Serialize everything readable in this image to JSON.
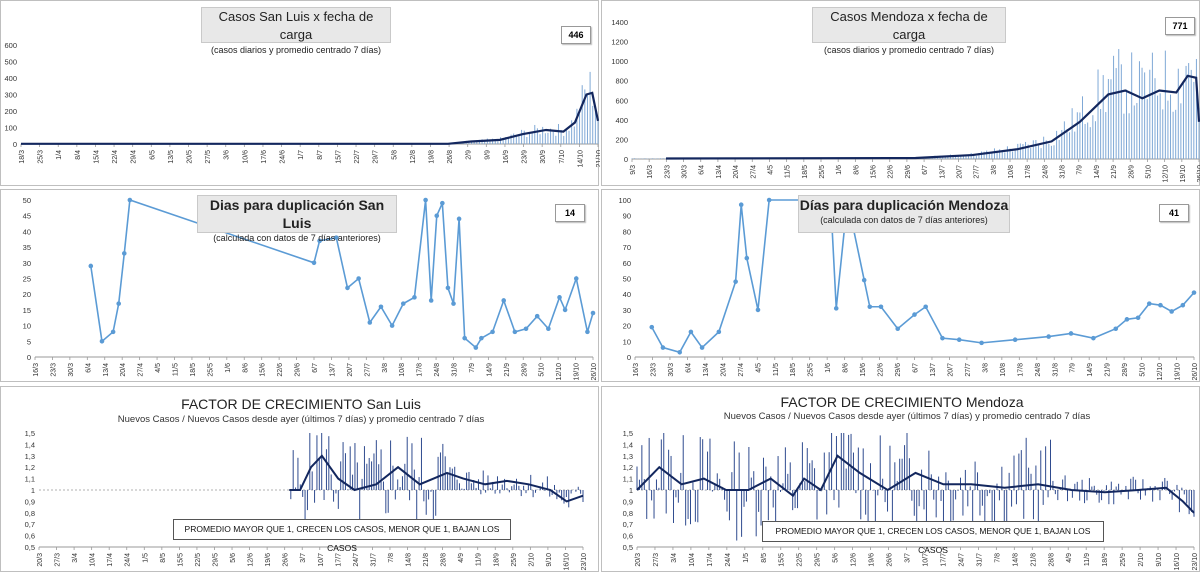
{
  "chart_data": [
    {
      "id": "sl_cases",
      "type": "bar",
      "title": "Casos San Luis x fecha de carga",
      "subtitle": "(casos diarios y promedio  centrado 7 días)",
      "badge": "446",
      "ylim": [
        0,
        600
      ],
      "yticks": [
        "0",
        "100",
        "200",
        "300",
        "400",
        "500",
        "600"
      ],
      "xticks": [
        "18/3",
        "25/3",
        "1/4",
        "8/4",
        "15/4",
        "22/4",
        "29/4",
        "6/5",
        "13/5",
        "20/5",
        "27/5",
        "3/6",
        "10/6",
        "17/6",
        "24/6",
        "1/7",
        "8/7",
        "15/7",
        "22/7",
        "29/7",
        "5/8",
        "12/8",
        "19/8",
        "26/8",
        "2/9",
        "9/9",
        "16/9",
        "23/9",
        "30/9",
        "7/10",
        "14/10",
        "21/10"
      ],
      "bars": [
        [
          0,
          0.14,
          0
        ],
        [
          0.7,
          0.9,
          12
        ],
        [
          0.9,
          0.97,
          60
        ],
        [
          0.97,
          1.0,
          250
        ]
      ],
      "avg": [
        [
          0,
          1
        ],
        [
          0.74,
          1
        ],
        [
          0.78,
          15
        ],
        [
          0.83,
          25
        ],
        [
          0.87,
          60
        ],
        [
          0.91,
          85
        ],
        [
          0.94,
          75
        ],
        [
          0.96,
          130
        ],
        [
          0.98,
          300
        ],
        [
          0.99,
          310
        ],
        [
          1.0,
          140
        ]
      ]
    },
    {
      "id": "mz_cases",
      "type": "bar",
      "title": "Casos Mendoza x fecha de carga",
      "subtitle": "(casos diarios y promedio  centrado 7 días)",
      "badge": "771",
      "ylim": [
        0,
        1400
      ],
      "yticks": [
        "0",
        "200",
        "400",
        "600",
        "800",
        "1000",
        "1200",
        "1400"
      ],
      "xticks": [
        "9/3",
        "16/3",
        "23/3",
        "30/3",
        "6/4",
        "13/4",
        "20/4",
        "27/4",
        "4/5",
        "11/5",
        "18/5",
        "25/5",
        "1/6",
        "8/6",
        "15/6",
        "22/6",
        "29/6",
        "6/7",
        "13/7",
        "20/7",
        "27/7",
        "3/8",
        "10/8",
        "17/8",
        "24/8",
        "31/8",
        "7/9",
        "14/9",
        "21/9",
        "28/9",
        "5/10",
        "12/10",
        "19/10",
        "26/10"
      ],
      "avg": [
        [
          0.06,
          5
        ],
        [
          0.5,
          10
        ],
        [
          0.6,
          40
        ],
        [
          0.68,
          100
        ],
        [
          0.74,
          180
        ],
        [
          0.79,
          380
        ],
        [
          0.84,
          660
        ],
        [
          0.87,
          700
        ],
        [
          0.9,
          620
        ],
        [
          0.93,
          700
        ],
        [
          0.96,
          680
        ],
        [
          0.98,
          850
        ],
        [
          0.995,
          830
        ],
        [
          1.0,
          380
        ]
      ]
    },
    {
      "id": "sl_dup",
      "type": "line",
      "title": "Dias para duplicación San Luis",
      "subtitle": "(calculada con datos de 7 días anteriores)",
      "badge": "14",
      "ylim": [
        0,
        50
      ],
      "yticks": [
        "0",
        "5",
        "10",
        "15",
        "20",
        "25",
        "30",
        "35",
        "40",
        "45",
        "50"
      ],
      "xticks": [
        "16/3",
        "23/3",
        "30/3",
        "6/4",
        "13/4",
        "20/4",
        "27/4",
        "4/5",
        "11/5",
        "18/5",
        "25/5",
        "1/6",
        "8/6",
        "15/6",
        "22/6",
        "29/6",
        "6/7",
        "13/7",
        "20/7",
        "27/7",
        "3/8",
        "10/8",
        "17/8",
        "24/8",
        "31/8",
        "7/9",
        "14/9",
        "21/9",
        "28/9",
        "5/10",
        "12/10",
        "19/10",
        "26/10"
      ],
      "series": [
        [
          0.1,
          29
        ],
        [
          0.12,
          5
        ],
        [
          0.14,
          8
        ],
        [
          0.15,
          17
        ],
        [
          0.16,
          33
        ],
        [
          0.17,
          50
        ],
        [
          0.5,
          30
        ],
        [
          0.51,
          37
        ],
        [
          0.54,
          38
        ],
        [
          0.56,
          22
        ],
        [
          0.58,
          25
        ],
        [
          0.6,
          11
        ],
        [
          0.62,
          16
        ],
        [
          0.64,
          10
        ],
        [
          0.66,
          17
        ],
        [
          0.68,
          19
        ],
        [
          0.7,
          50
        ],
        [
          0.71,
          18
        ],
        [
          0.72,
          45
        ],
        [
          0.73,
          49
        ],
        [
          0.74,
          22
        ],
        [
          0.75,
          17
        ],
        [
          0.76,
          44
        ],
        [
          0.77,
          6
        ],
        [
          0.79,
          3
        ],
        [
          0.8,
          6
        ],
        [
          0.82,
          8
        ],
        [
          0.84,
          18
        ],
        [
          0.86,
          8
        ],
        [
          0.88,
          9
        ],
        [
          0.9,
          13
        ],
        [
          0.92,
          9
        ],
        [
          0.94,
          19
        ],
        [
          0.95,
          15
        ],
        [
          0.97,
          25
        ],
        [
          0.99,
          8
        ],
        [
          1.0,
          14
        ]
      ]
    },
    {
      "id": "mz_dup",
      "type": "line",
      "title": "Días para duplicación Mendoza",
      "subtitle": "(calculada con datos de 7 días anteriores)",
      "badge": "41",
      "ylim": [
        0,
        100
      ],
      "yticks": [
        "0",
        "10",
        "20",
        "30",
        "40",
        "50",
        "60",
        "70",
        "80",
        "90",
        "100"
      ],
      "xticks": [
        "16/3",
        "23/3",
        "30/3",
        "6/4",
        "13/4",
        "20/4",
        "27/4",
        "4/5",
        "11/5",
        "18/5",
        "25/5",
        "1/6",
        "8/6",
        "15/6",
        "22/6",
        "29/6",
        "6/7",
        "13/7",
        "20/7",
        "27/7",
        "3/8",
        "10/8",
        "17/8",
        "24/8",
        "31/8",
        "7/9",
        "14/9",
        "21/9",
        "28/9",
        "5/10",
        "12/10",
        "19/10",
        "26/10"
      ],
      "series": [
        [
          0.03,
          19
        ],
        [
          0.05,
          6
        ],
        [
          0.08,
          3
        ],
        [
          0.1,
          16
        ],
        [
          0.12,
          6
        ],
        [
          0.15,
          16
        ],
        [
          0.18,
          48
        ],
        [
          0.19,
          97
        ],
        [
          0.2,
          63
        ],
        [
          0.22,
          30
        ],
        [
          0.24,
          100
        ],
        [
          0.35,
          100
        ],
        [
          0.36,
          31
        ],
        [
          0.38,
          100
        ],
        [
          0.41,
          49
        ],
        [
          0.42,
          32
        ],
        [
          0.44,
          32
        ],
        [
          0.47,
          18
        ],
        [
          0.5,
          27
        ],
        [
          0.52,
          32
        ],
        [
          0.55,
          12
        ],
        [
          0.58,
          11
        ],
        [
          0.62,
          9
        ],
        [
          0.68,
          11
        ],
        [
          0.74,
          13
        ],
        [
          0.78,
          15
        ],
        [
          0.82,
          12
        ],
        [
          0.86,
          18
        ],
        [
          0.88,
          24
        ],
        [
          0.9,
          25
        ],
        [
          0.92,
          34
        ],
        [
          0.94,
          33
        ],
        [
          0.96,
          29
        ],
        [
          0.98,
          33
        ],
        [
          1.0,
          41
        ]
      ]
    },
    {
      "id": "sl_factor",
      "type": "bar",
      "title": "FACTOR DE CRECIMIENTO San Luis",
      "subtitle": "Nuevos Casos  / Nuevos Casos desde ayer (últimos 7 días) y promedio  centrado  7 días",
      "note": "PROMEDIO MAYOR QUE 1, CRECEN LOS CASOS, MENOR QUE 1, BAJAN LOS CASOS",
      "ylim": [
        0.5,
        1.5
      ],
      "yticks": [
        "0,5",
        "0,6",
        "0,7",
        "0,8",
        "0,9",
        "1",
        "1,1",
        "1,2",
        "1,3",
        "1,4",
        "1,5"
      ],
      "xticks": [
        "20/3",
        "27/3",
        "3/4",
        "10/4",
        "17/4",
        "24/4",
        "1/5",
        "8/5",
        "15/5",
        "22/5",
        "29/5",
        "5/6",
        "12/6",
        "19/6",
        "26/6",
        "3/7",
        "10/7",
        "17/7",
        "24/7",
        "31/7",
        "7/8",
        "14/8",
        "21/8",
        "28/8",
        "4/9",
        "11/9",
        "18/9",
        "25/9",
        "2/10",
        "9/10",
        "16/10",
        "23/10"
      ],
      "avg": [
        [
          0.46,
          1.0
        ],
        [
          0.48,
          1.0
        ],
        [
          0.5,
          1.2
        ],
        [
          0.52,
          1.3
        ],
        [
          0.55,
          1.1
        ],
        [
          0.58,
          1.0
        ],
        [
          0.62,
          1.05
        ],
        [
          0.66,
          1.2
        ],
        [
          0.7,
          1.05
        ],
        [
          0.75,
          1.15
        ],
        [
          0.78,
          1.1
        ],
        [
          0.82,
          1.05
        ],
        [
          0.86,
          1.08
        ],
        [
          0.9,
          1.05
        ],
        [
          0.94,
          1.0
        ],
        [
          0.97,
          0.9
        ],
        [
          1.0,
          0.95
        ]
      ]
    },
    {
      "id": "mz_factor",
      "type": "bar",
      "title": "FACTOR DE CRECIMIENTO Mendoza",
      "subtitle": "Nuevos Casos  / Nuevos Casos desde ayer (últimos 7 días) y promedio  centrado  7 días",
      "note": "PROMEDIO MAYOR QUE 1, CRECEN LOS CASOS, MENOR QUE 1, BAJAN LOS CASOS",
      "ylim": [
        0.5,
        1.5
      ],
      "yticks": [
        "0,5",
        "0,6",
        "0,7",
        "0,8",
        "0,9",
        "1",
        "1,1",
        "1,2",
        "1,3",
        "1,4",
        "1,5"
      ],
      "xticks": [
        "20/3",
        "27/3",
        "3/4",
        "10/4",
        "17/4",
        "24/4",
        "1/5",
        "8/5",
        "15/5",
        "22/5",
        "29/5",
        "5/6",
        "12/6",
        "19/6",
        "26/6",
        "3/7",
        "10/7",
        "17/7",
        "24/7",
        "31/7",
        "7/8",
        "14/8",
        "21/8",
        "28/8",
        "4/9",
        "11/9",
        "18/9",
        "25/9",
        "2/10",
        "9/10",
        "16/10",
        "23/10"
      ],
      "avg": [
        [
          0.0,
          1.0
        ],
        [
          0.04,
          1.2
        ],
        [
          0.08,
          1.05
        ],
        [
          0.12,
          1.1
        ],
        [
          0.16,
          1.0
        ],
        [
          0.2,
          1.0
        ],
        [
          0.24,
          1.1
        ],
        [
          0.28,
          0.95
        ],
        [
          0.3,
          1.1
        ],
        [
          0.33,
          1.0
        ],
        [
          0.36,
          1.3
        ],
        [
          0.4,
          1.15
        ],
        [
          0.45,
          1.0
        ],
        [
          0.5,
          1.15
        ],
        [
          0.55,
          1.05
        ],
        [
          0.6,
          1.05
        ],
        [
          0.66,
          1.02
        ],
        [
          0.72,
          1.05
        ],
        [
          0.78,
          1.0
        ],
        [
          0.84,
          0.98
        ],
        [
          0.9,
          1.0
        ],
        [
          0.95,
          1.02
        ],
        [
          0.98,
          0.9
        ],
        [
          1.0,
          0.8
        ]
      ]
    }
  ]
}
